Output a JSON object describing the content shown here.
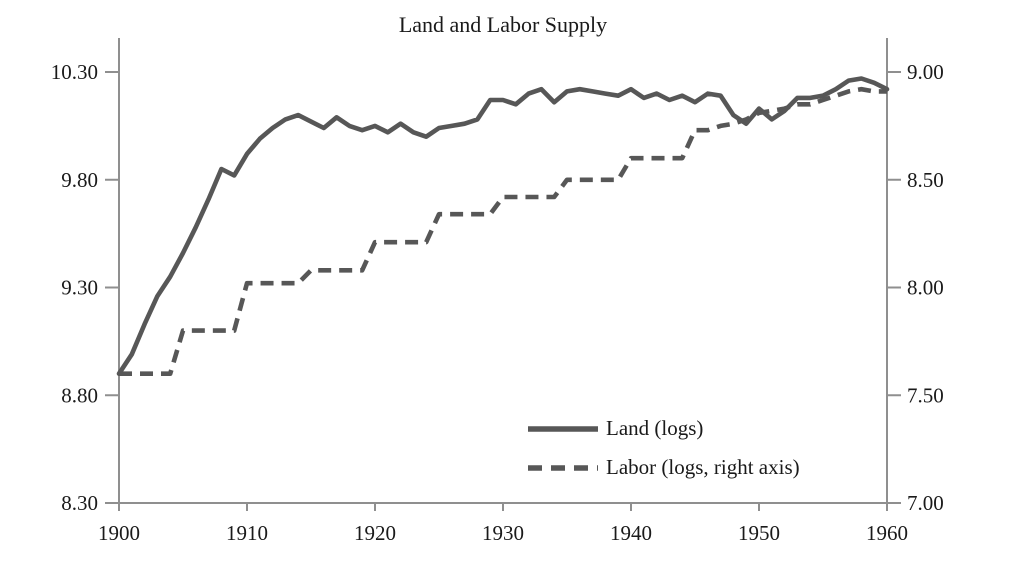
{
  "chart": {
    "title": "Land and Labor Supply"
  },
  "chart_data": {
    "type": "line",
    "title": "Land and Labor Supply",
    "xlabel": "",
    "ylabel_left": "",
    "ylabel_right": "",
    "grid": false,
    "legend_position": "inside-bottom-right",
    "x": [
      1900,
      1901,
      1902,
      1903,
      1904,
      1905,
      1906,
      1907,
      1908,
      1909,
      1910,
      1911,
      1912,
      1913,
      1914,
      1915,
      1916,
      1917,
      1918,
      1919,
      1920,
      1921,
      1922,
      1923,
      1924,
      1925,
      1926,
      1927,
      1928,
      1929,
      1930,
      1931,
      1932,
      1933,
      1934,
      1935,
      1936,
      1937,
      1938,
      1939,
      1940,
      1941,
      1942,
      1943,
      1944,
      1945,
      1946,
      1947,
      1948,
      1949,
      1950,
      1951,
      1952,
      1953,
      1954,
      1955,
      1956,
      1957,
      1958,
      1959,
      1960
    ],
    "x_tick_labels": [
      "1900",
      "1910",
      "1920",
      "1930",
      "1940",
      "1950",
      "1960"
    ],
    "x_tick_values": [
      1900,
      1910,
      1920,
      1930,
      1940,
      1950,
      1960
    ],
    "left_axis": {
      "min": 8.3,
      "max": 10.3,
      "tick_labels": [
        "10.30",
        "9.80",
        "9.30",
        "8.80",
        "8.30"
      ],
      "tick_values": [
        10.3,
        9.8,
        9.3,
        8.8,
        8.3
      ]
    },
    "right_axis": {
      "min": 7.0,
      "max": 9.0,
      "tick_labels": [
        "9.00",
        "8.50",
        "8.00",
        "7.50",
        "7.00"
      ],
      "tick_values": [
        9.0,
        8.5,
        8.0,
        7.5,
        7.0
      ]
    },
    "series": [
      {
        "name": "Land (logs)",
        "axis": "left",
        "style": "solid",
        "values": [
          8.9,
          8.99,
          9.13,
          9.26,
          9.35,
          9.46,
          9.58,
          9.71,
          9.85,
          9.82,
          9.92,
          9.99,
          10.04,
          10.08,
          10.1,
          10.07,
          10.04,
          10.09,
          10.05,
          10.03,
          10.05,
          10.02,
          10.06,
          10.02,
          10.0,
          10.04,
          10.05,
          10.06,
          10.08,
          10.17,
          10.17,
          10.15,
          10.2,
          10.22,
          10.16,
          10.21,
          10.22,
          10.21,
          10.2,
          10.19,
          10.22,
          10.18,
          10.2,
          10.17,
          10.19,
          10.16,
          10.2,
          10.19,
          10.1,
          10.06,
          10.13,
          10.08,
          10.12,
          10.18,
          10.18,
          10.19,
          10.22,
          10.26,
          10.27,
          10.25,
          10.22
        ]
      },
      {
        "name": "Labor (logs, right axis)",
        "axis": "right",
        "style": "dashed",
        "values": [
          7.6,
          7.6,
          7.6,
          7.6,
          7.6,
          7.8,
          7.8,
          7.8,
          7.8,
          7.8,
          8.02,
          8.02,
          8.02,
          8.02,
          8.02,
          8.08,
          8.08,
          8.08,
          8.08,
          8.08,
          8.21,
          8.21,
          8.21,
          8.21,
          8.21,
          8.34,
          8.34,
          8.34,
          8.34,
          8.34,
          8.42,
          8.42,
          8.42,
          8.42,
          8.42,
          8.5,
          8.5,
          8.5,
          8.5,
          8.5,
          8.6,
          8.6,
          8.6,
          8.6,
          8.6,
          8.73,
          8.73,
          8.75,
          8.76,
          8.78,
          8.81,
          8.82,
          8.83,
          8.85,
          8.85,
          8.87,
          8.89,
          8.91,
          8.92,
          8.91,
          8.91
        ]
      }
    ],
    "colors": {
      "series_line": "#575757",
      "axis_line": "#8f8f8f",
      "text": "#1a1a1a",
      "background": "#ffffff"
    }
  }
}
